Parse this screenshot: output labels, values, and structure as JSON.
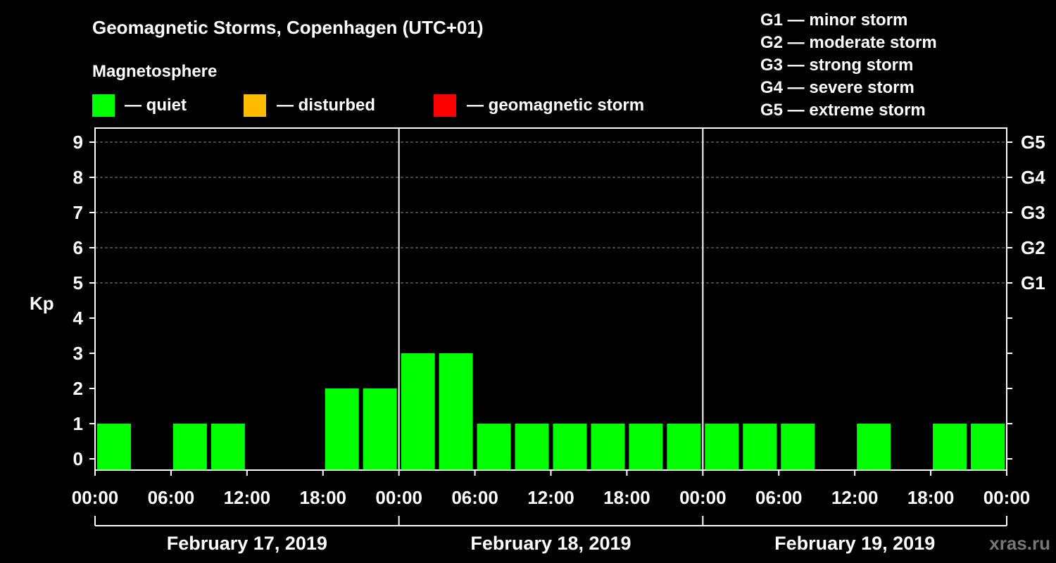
{
  "title": "Geomagnetic Storms, Copenhagen (UTC+01)",
  "legend": {
    "heading": "Magnetosphere",
    "items": [
      {
        "label": "— quiet",
        "color": "#00ff00"
      },
      {
        "label": "— disturbed",
        "color": "#ffbb00"
      },
      {
        "label": "— geomagnetic storm",
        "color": "#ff0000"
      }
    ]
  },
  "storm_scale": [
    {
      "level": "G1",
      "label": "G1 — minor storm"
    },
    {
      "level": "G2",
      "label": "G2 — moderate storm"
    },
    {
      "level": "G3",
      "label": "G3 — strong storm"
    },
    {
      "level": "G4",
      "label": "G4 — severe storm"
    },
    {
      "level": "G5",
      "label": "G5 — extreme storm"
    }
  ],
  "watermark": "xras.ru",
  "chart_data": {
    "type": "bar",
    "ylabel": "Kp",
    "ylim": [
      0,
      9
    ],
    "yticks": [
      0,
      1,
      2,
      3,
      4,
      5,
      6,
      7,
      8,
      9
    ],
    "right_axis": [
      {
        "kp": 5,
        "label": "G1"
      },
      {
        "kp": 6,
        "label": "G2"
      },
      {
        "kp": 7,
        "label": "G3"
      },
      {
        "kp": 8,
        "label": "G4"
      },
      {
        "kp": 9,
        "label": "G5"
      }
    ],
    "grid_dashed_at": [
      5,
      6,
      7,
      8,
      9
    ],
    "xlim_hours": [
      0,
      72
    ],
    "interval_hours": 3,
    "xtick_labels": [
      "00:00",
      "06:00",
      "12:00",
      "18:00",
      "00:00",
      "06:00",
      "12:00",
      "18:00",
      "00:00",
      "06:00",
      "12:00",
      "18:00",
      "00:00"
    ],
    "days": [
      {
        "label": "February 17, 2019",
        "start_hour": 0,
        "end_hour": 24
      },
      {
        "label": "February 18, 2019",
        "start_hour": 24,
        "end_hour": 48
      },
      {
        "label": "February 19, 2019",
        "start_hour": 48,
        "end_hour": 72
      }
    ],
    "series": [
      {
        "name": "Kp",
        "values": [
          1,
          0,
          1,
          1,
          0,
          0,
          2,
          2,
          3,
          3,
          1,
          1,
          1,
          1,
          1,
          1,
          1,
          1,
          1,
          0,
          1,
          0,
          1,
          1
        ]
      }
    ],
    "thresholds": {
      "quiet_max": 4,
      "disturbed_max": 4
    },
    "colors": {
      "quiet": "#00ff00",
      "disturbed": "#ffbb00",
      "storm": "#ff0000"
    }
  }
}
